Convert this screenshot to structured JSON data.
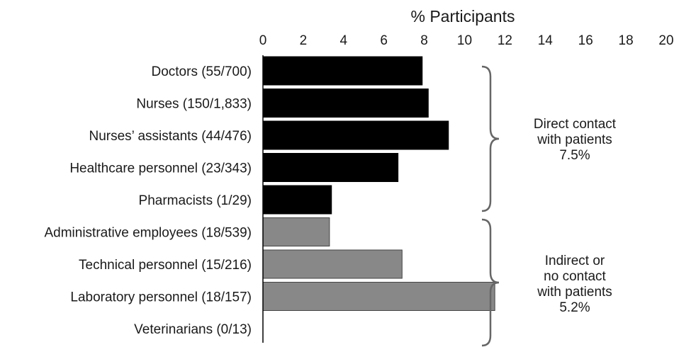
{
  "chart_data": {
    "type": "bar",
    "orientation": "horizontal",
    "xlabel": "% Participants",
    "xlim": [
      0,
      20
    ],
    "xticks": [
      "0",
      "2",
      "4",
      "6",
      "8",
      "10",
      "12",
      "14",
      "16",
      "18",
      "20"
    ],
    "grid": false,
    "categories": [
      "Doctors (55/700)",
      "Nurses (150/1,833)",
      "Nurses’ assistants (44/476)",
      "Healthcare personnel (23/343)",
      "Pharmacists (1/29)",
      "Administrative employees (18/539)",
      "Technical personnel (15/216)",
      "Laboratory personnel (18/157)",
      "Veterinarians (0/13)"
    ],
    "values": [
      7.9,
      8.2,
      9.2,
      6.7,
      3.4,
      3.3,
      6.9,
      11.5,
      0
    ],
    "bar_group": [
      "direct",
      "direct",
      "direct",
      "direct",
      "direct",
      "indirect",
      "indirect",
      "indirect",
      "indirect"
    ],
    "colors": {
      "direct": "#000000",
      "indirect": "#888888",
      "brace": "#666666",
      "axis": "#000000"
    },
    "groups": [
      {
        "id": "direct",
        "label_lines": [
          "Direct contact",
          "with patients",
          "7.5%"
        ]
      },
      {
        "id": "indirect",
        "label_lines": [
          "Indirect or",
          "no contact",
          "with patients",
          "5.2%"
        ]
      }
    ]
  }
}
